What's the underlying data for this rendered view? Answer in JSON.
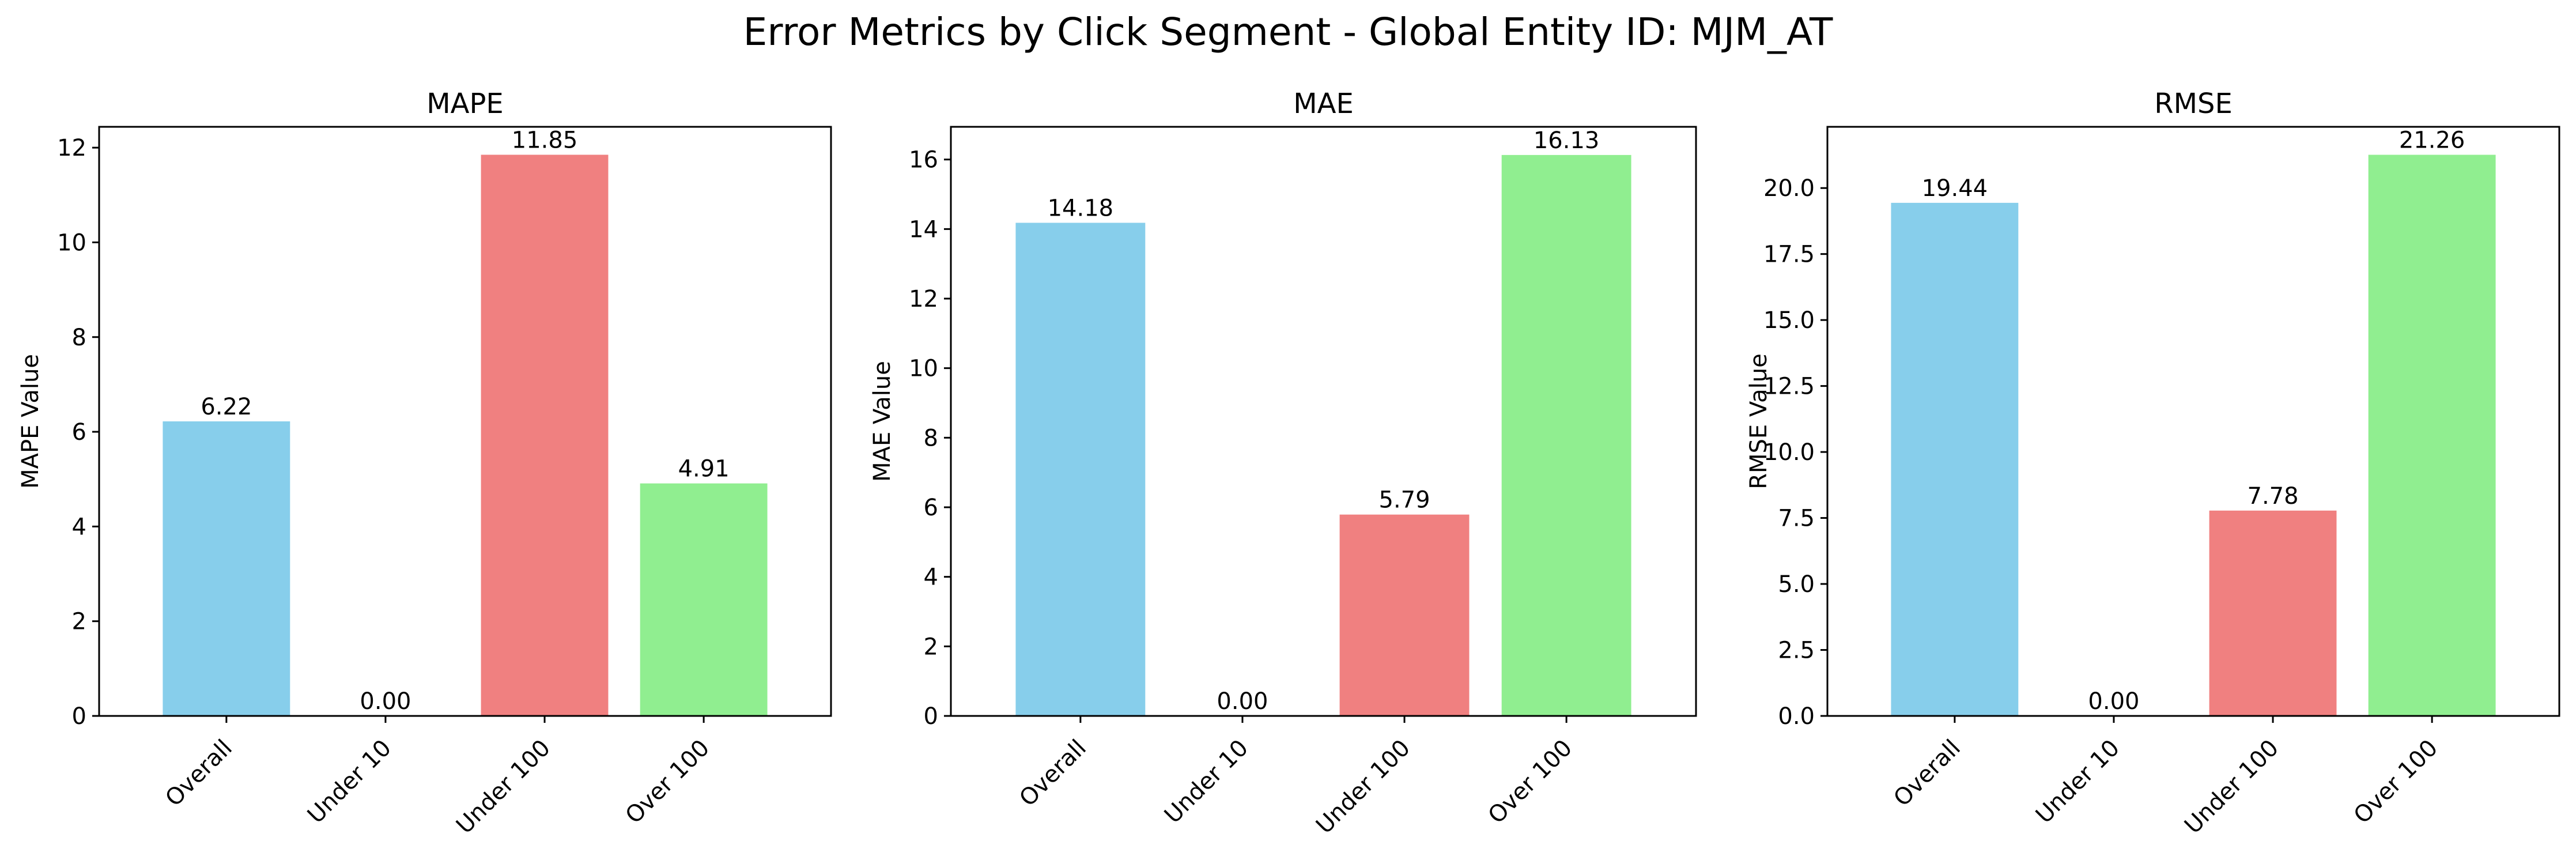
{
  "figure": {
    "title": "Error Metrics by Click Segment - Global Entity ID: MJM_AT"
  },
  "chart_data": [
    {
      "type": "bar",
      "title": "MAPE",
      "xlabel": "",
      "ylabel": "MAPE Value",
      "ylim": [
        0,
        12.44
      ],
      "yticks": [
        0,
        2,
        4,
        6,
        8,
        10,
        12
      ],
      "ytick_labels": [
        "0",
        "2",
        "4",
        "6",
        "8",
        "10",
        "12"
      ],
      "categories": [
        "Overall",
        "Under 10",
        "Under 100",
        "Over 100"
      ],
      "values": [
        6.22,
        0.0,
        11.85,
        4.91
      ],
      "value_labels": [
        "6.22",
        "0.00",
        "11.85",
        "4.91"
      ],
      "colors": [
        "#87ceeb",
        "#ff7f7f",
        "#f08080",
        "#90ee90"
      ],
      "grid": false,
      "legend": "none"
    },
    {
      "type": "bar",
      "title": "MAE",
      "xlabel": "",
      "ylabel": "MAE Value",
      "ylim": [
        0,
        16.94
      ],
      "yticks": [
        0,
        2,
        4,
        6,
        8,
        10,
        12,
        14,
        16
      ],
      "ytick_labels": [
        "0",
        "2",
        "4",
        "6",
        "8",
        "10",
        "12",
        "14",
        "16"
      ],
      "categories": [
        "Overall",
        "Under 10",
        "Under 100",
        "Over 100"
      ],
      "values": [
        14.18,
        0.0,
        5.79,
        16.13
      ],
      "value_labels": [
        "14.18",
        "0.00",
        "5.79",
        "16.13"
      ],
      "colors": [
        "#87ceeb",
        "#ff7f7f",
        "#f08080",
        "#90ee90"
      ],
      "grid": false,
      "legend": "none"
    },
    {
      "type": "bar",
      "title": "RMSE",
      "xlabel": "",
      "ylabel": "RMSE Value",
      "ylim": [
        0,
        22.32
      ],
      "yticks": [
        0,
        2.5,
        5,
        7.5,
        10,
        12.5,
        15,
        17.5,
        20
      ],
      "ytick_labels": [
        "0.0",
        "2.5",
        "5.0",
        "7.5",
        "10.0",
        "12.5",
        "15.0",
        "17.5",
        "20.0"
      ],
      "categories": [
        "Overall",
        "Under 10",
        "Under 100",
        "Over 100"
      ],
      "values": [
        19.44,
        0.0,
        7.78,
        21.26
      ],
      "value_labels": [
        "19.44",
        "0.00",
        "7.78",
        "21.26"
      ],
      "colors": [
        "#87ceeb",
        "#ff7f7f",
        "#f08080",
        "#90ee90"
      ],
      "grid": false,
      "legend": "none"
    }
  ]
}
